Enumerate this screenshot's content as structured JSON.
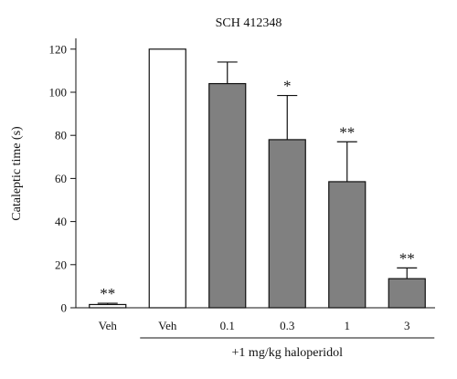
{
  "chart_data": {
    "type": "bar",
    "title": "SCH 412348",
    "ylabel": "Cataleptic time (s)",
    "xlabel": "",
    "ylim": [
      0,
      125
    ],
    "yticks": [
      0,
      20,
      40,
      60,
      80,
      100,
      120
    ],
    "categories": [
      "Veh",
      "Veh",
      "0.1",
      "0.3",
      "1",
      "3"
    ],
    "values": [
      1.5,
      120,
      104,
      78,
      58.5,
      13.5
    ],
    "errors": [
      0.6,
      0,
      10,
      20.5,
      18.5,
      5
    ],
    "colors": [
      "#ffffff",
      "#ffffff",
      "#808080",
      "#808080",
      "#808080",
      "#808080"
    ],
    "significance": [
      "**",
      "",
      "",
      "*",
      "**",
      "**"
    ],
    "group_label": "+1 mg/kg haloperidol",
    "group_span": [
      1,
      5
    ],
    "grid": false
  }
}
